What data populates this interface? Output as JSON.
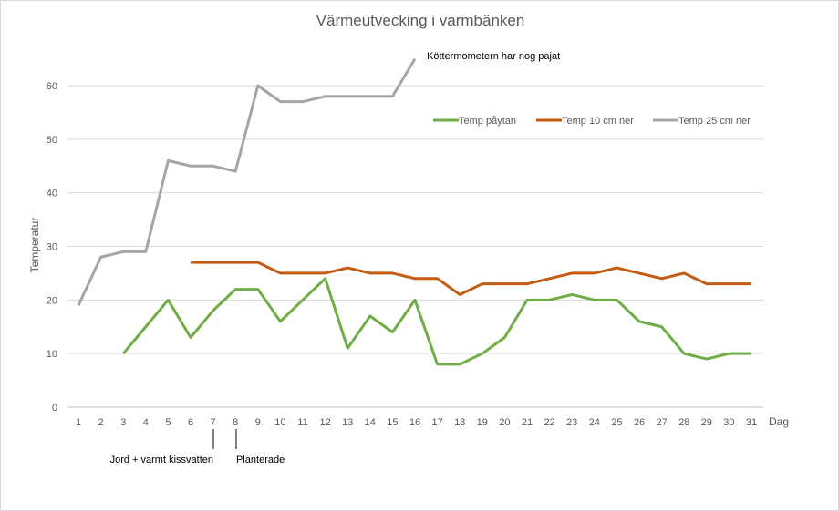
{
  "chart_data": {
    "type": "line",
    "title": "Värmeutvecking i varmbänken",
    "xlabel": "Dag",
    "ylabel": "Temperatur",
    "ylim": [
      0,
      60
    ],
    "yticks": [
      0,
      10,
      20,
      30,
      40,
      50,
      60
    ],
    "grid": true,
    "legend_position": "top-right",
    "x": [
      1,
      2,
      3,
      4,
      5,
      6,
      7,
      8,
      9,
      10,
      11,
      12,
      13,
      14,
      15,
      16,
      17,
      18,
      19,
      20,
      21,
      22,
      23,
      24,
      25,
      26,
      27,
      28,
      29,
      30,
      31
    ],
    "series": [
      {
        "name": "Temp påytan",
        "color": "#70ad47",
        "values": [
          null,
          null,
          10,
          15,
          20,
          13,
          18,
          22,
          22,
          16,
          20,
          24,
          11,
          17,
          14,
          20,
          8,
          8,
          10,
          13,
          20,
          20,
          21,
          20,
          20,
          16,
          15,
          10,
          9,
          10,
          10
        ]
      },
      {
        "name": "Temp 10 cm ner",
        "color": "#c55a11",
        "values": [
          null,
          null,
          null,
          null,
          null,
          27,
          27,
          27,
          27,
          25,
          25,
          25,
          26,
          25,
          25,
          24,
          24,
          21,
          23,
          23,
          23,
          24,
          25,
          25,
          26,
          25,
          24,
          25,
          23,
          23,
          23
        ]
      },
      {
        "name": "Temp 25 cm ner",
        "color": "#a5a5a5",
        "values": [
          19,
          28,
          29,
          29,
          46,
          45,
          45,
          44,
          60,
          57,
          57,
          58,
          58,
          58,
          58,
          65,
          null,
          null,
          null,
          null,
          null,
          null,
          null,
          null,
          null,
          null,
          null,
          null,
          null,
          null,
          null
        ]
      }
    ],
    "annotations": [
      {
        "text": "Köttermometern har nog pajat",
        "day": 16,
        "series": "Temp 25 cm ner"
      },
      {
        "text": "Jord + varmt kissvatten",
        "day": 7
      },
      {
        "text": "Planterade",
        "day": 8
      }
    ]
  }
}
